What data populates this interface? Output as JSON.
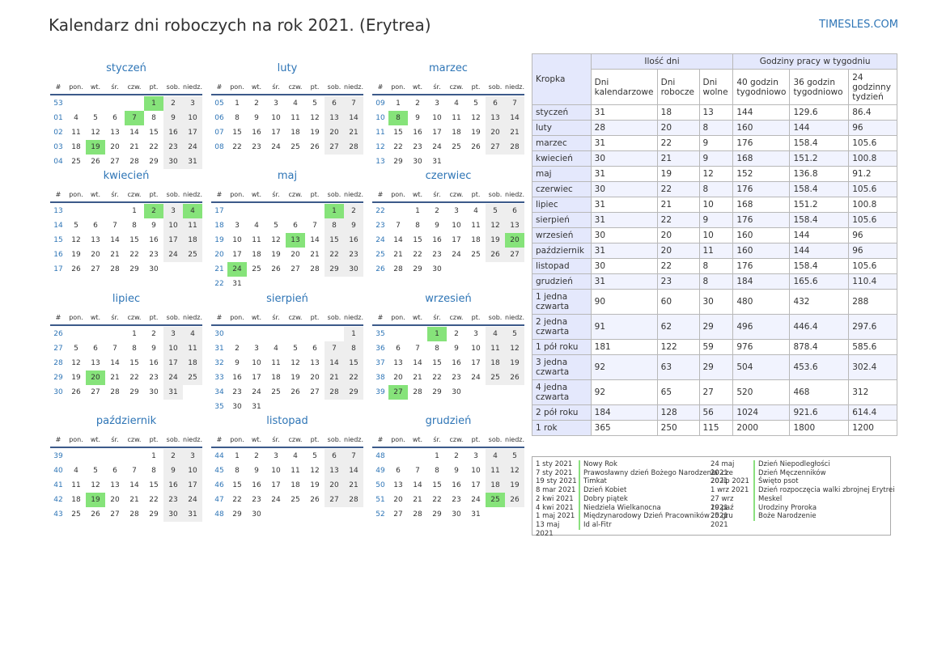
{
  "header": {
    "title": "Kalendarz dni roboczych na rok 2021. (Erytrea)",
    "site": "TIMESLES.COM"
  },
  "calendar": {
    "weekdays": [
      "#",
      "pon.",
      "wt.",
      "śr.",
      "czw.",
      "pt.",
      "sob.",
      "niedz."
    ],
    "months": [
      {
        "name": "styczeń",
        "holidays": [
          1,
          7,
          19
        ],
        "weeks": [
          [
            "53",
            null,
            null,
            null,
            null,
            1,
            2,
            3
          ],
          [
            "01",
            4,
            5,
            6,
            7,
            8,
            9,
            10
          ],
          [
            "02",
            11,
            12,
            13,
            14,
            15,
            16,
            17
          ],
          [
            "03",
            18,
            19,
            20,
            21,
            22,
            23,
            24
          ],
          [
            "04",
            25,
            26,
            27,
            28,
            29,
            30,
            31
          ]
        ]
      },
      {
        "name": "luty",
        "holidays": [],
        "weeks": [
          [
            "05",
            1,
            2,
            3,
            4,
            5,
            6,
            7
          ],
          [
            "06",
            8,
            9,
            10,
            11,
            12,
            13,
            14
          ],
          [
            "07",
            15,
            16,
            17,
            18,
            19,
            20,
            21
          ],
          [
            "08",
            22,
            23,
            24,
            25,
            26,
            27,
            28
          ]
        ]
      },
      {
        "name": "marzec",
        "holidays": [
          8
        ],
        "weeks": [
          [
            "09",
            1,
            2,
            3,
            4,
            5,
            6,
            7
          ],
          [
            "10",
            8,
            9,
            10,
            11,
            12,
            13,
            14
          ],
          [
            "11",
            15,
            16,
            17,
            18,
            19,
            20,
            21
          ],
          [
            "12",
            22,
            23,
            24,
            25,
            26,
            27,
            28
          ],
          [
            "13",
            29,
            30,
            31,
            null,
            null,
            null,
            null
          ]
        ]
      },
      {
        "name": "kwiecień",
        "holidays": [
          2,
          4
        ],
        "weeks": [
          [
            "13",
            null,
            null,
            null,
            1,
            2,
            3,
            4
          ],
          [
            "14",
            5,
            6,
            7,
            8,
            9,
            10,
            11
          ],
          [
            "15",
            12,
            13,
            14,
            15,
            16,
            17,
            18
          ],
          [
            "16",
            19,
            20,
            21,
            22,
            23,
            24,
            25
          ],
          [
            "17",
            26,
            27,
            28,
            29,
            30,
            null,
            null
          ]
        ]
      },
      {
        "name": "maj",
        "holidays": [
          1,
          13,
          24
        ],
        "weeks": [
          [
            "17",
            null,
            null,
            null,
            null,
            null,
            1,
            2
          ],
          [
            "18",
            3,
            4,
            5,
            6,
            7,
            8,
            9
          ],
          [
            "19",
            10,
            11,
            12,
            13,
            14,
            15,
            16
          ],
          [
            "20",
            17,
            18,
            19,
            20,
            21,
            22,
            23
          ],
          [
            "21",
            24,
            25,
            26,
            27,
            28,
            29,
            30
          ],
          [
            "22",
            31,
            null,
            null,
            null,
            null,
            null,
            null
          ]
        ]
      },
      {
        "name": "czerwiec",
        "holidays": [
          20
        ],
        "weeks": [
          [
            "22",
            null,
            1,
            2,
            3,
            4,
            5,
            6
          ],
          [
            "23",
            7,
            8,
            9,
            10,
            11,
            12,
            13
          ],
          [
            "24",
            14,
            15,
            16,
            17,
            18,
            19,
            20
          ],
          [
            "25",
            21,
            22,
            23,
            24,
            25,
            26,
            27
          ],
          [
            "26",
            28,
            29,
            30,
            null,
            null,
            null,
            null
          ]
        ]
      },
      {
        "name": "lipiec",
        "holidays": [
          20
        ],
        "weeks": [
          [
            "26",
            null,
            null,
            null,
            1,
            2,
            3,
            4
          ],
          [
            "27",
            5,
            6,
            7,
            8,
            9,
            10,
            11
          ],
          [
            "28",
            12,
            13,
            14,
            15,
            16,
            17,
            18
          ],
          [
            "29",
            19,
            20,
            21,
            22,
            23,
            24,
            25
          ],
          [
            "30",
            26,
            27,
            28,
            29,
            30,
            31,
            null
          ]
        ]
      },
      {
        "name": "sierpień",
        "holidays": [],
        "weeks": [
          [
            "30",
            null,
            null,
            null,
            null,
            null,
            null,
            1
          ],
          [
            "31",
            2,
            3,
            4,
            5,
            6,
            7,
            8
          ],
          [
            "32",
            9,
            10,
            11,
            12,
            13,
            14,
            15
          ],
          [
            "33",
            16,
            17,
            18,
            19,
            20,
            21,
            22
          ],
          [
            "34",
            23,
            24,
            25,
            26,
            27,
            28,
            29
          ],
          [
            "35",
            30,
            31,
            null,
            null,
            null,
            null,
            null
          ]
        ]
      },
      {
        "name": "wrzesień",
        "holidays": [
          1,
          27
        ],
        "weeks": [
          [
            "35",
            null,
            null,
            1,
            2,
            3,
            4,
            5
          ],
          [
            "36",
            6,
            7,
            8,
            9,
            10,
            11,
            12
          ],
          [
            "37",
            13,
            14,
            15,
            16,
            17,
            18,
            19
          ],
          [
            "38",
            20,
            21,
            22,
            23,
            24,
            25,
            26
          ],
          [
            "39",
            27,
            28,
            29,
            30,
            null,
            null,
            null
          ]
        ]
      },
      {
        "name": "październik",
        "holidays": [
          19
        ],
        "weeks": [
          [
            "39",
            null,
            null,
            null,
            null,
            1,
            2,
            3
          ],
          [
            "40",
            4,
            5,
            6,
            7,
            8,
            9,
            10
          ],
          [
            "41",
            11,
            12,
            13,
            14,
            15,
            16,
            17
          ],
          [
            "42",
            18,
            19,
            20,
            21,
            22,
            23,
            24
          ],
          [
            "43",
            25,
            26,
            27,
            28,
            29,
            30,
            31
          ]
        ]
      },
      {
        "name": "listopad",
        "holidays": [],
        "weeks": [
          [
            "44",
            1,
            2,
            3,
            4,
            5,
            6,
            7
          ],
          [
            "45",
            8,
            9,
            10,
            11,
            12,
            13,
            14
          ],
          [
            "46",
            15,
            16,
            17,
            18,
            19,
            20,
            21
          ],
          [
            "47",
            22,
            23,
            24,
            25,
            26,
            27,
            28
          ],
          [
            "48",
            29,
            30,
            null,
            null,
            null,
            null,
            null
          ]
        ]
      },
      {
        "name": "grudzień",
        "holidays": [
          25
        ],
        "weeks": [
          [
            "48",
            null,
            null,
            1,
            2,
            3,
            4,
            5
          ],
          [
            "49",
            6,
            7,
            8,
            9,
            10,
            11,
            12
          ],
          [
            "50",
            13,
            14,
            15,
            16,
            17,
            18,
            19
          ],
          [
            "51",
            20,
            21,
            22,
            23,
            24,
            25,
            26
          ],
          [
            "52",
            27,
            28,
            29,
            30,
            31,
            null,
            null
          ]
        ]
      }
    ]
  },
  "table": {
    "header": [
      "Kropka",
      "Ilość dni",
      "Godziny pracy w tygodniu"
    ],
    "subheader": [
      "Dni kalendarzowe",
      "Dni robocze",
      "Dni wolne",
      "40 godzin tygodniowo",
      "36 godzin tygodniowo",
      "24 godzinny tydzień"
    ],
    "rows": [
      [
        "styczeń",
        31,
        18,
        13,
        144,
        129.6,
        86.4
      ],
      [
        "luty",
        28,
        20,
        8,
        160,
        144,
        96
      ],
      [
        "marzec",
        31,
        22,
        9,
        176,
        158.4,
        105.6
      ],
      [
        "kwiecień",
        30,
        21,
        9,
        168,
        151.2,
        100.8
      ],
      [
        "maj",
        31,
        19,
        12,
        152,
        136.8,
        91.2
      ],
      [
        "czerwiec",
        30,
        22,
        8,
        176,
        158.4,
        105.6
      ],
      [
        "lipiec",
        31,
        21,
        10,
        168,
        151.2,
        100.8
      ],
      [
        "sierpień",
        31,
        22,
        9,
        176,
        158.4,
        105.6
      ],
      [
        "wrzesień",
        30,
        20,
        10,
        160,
        144,
        96
      ],
      [
        "październik",
        31,
        20,
        11,
        160,
        144,
        96
      ],
      [
        "listopad",
        30,
        22,
        8,
        176,
        158.4,
        105.6
      ],
      [
        "grudzień",
        31,
        23,
        8,
        184,
        165.6,
        110.4
      ],
      [
        "1 jedna czwarta",
        90,
        60,
        30,
        480,
        432,
        288
      ],
      [
        "2 jedna czwarta",
        91,
        62,
        29,
        496,
        446.4,
        297.6
      ],
      [
        "1 pół roku",
        181,
        122,
        59,
        976,
        878.4,
        585.6
      ],
      [
        "3 jedna czwarta",
        92,
        63,
        29,
        504,
        453.6,
        302.4
      ],
      [
        "4 jedna czwarta",
        92,
        65,
        27,
        520,
        468,
        312
      ],
      [
        "2 pół roku",
        184,
        128,
        56,
        1024,
        921.6,
        614.4
      ],
      [
        "1 rok",
        365,
        250,
        115,
        2000,
        1800,
        1200
      ]
    ]
  },
  "holidays": {
    "left": [
      [
        "1 sty 2021",
        "Nowy Rok"
      ],
      [
        "7 sty 2021",
        "Prawosławny dzień Bożego Narodzenia"
      ],
      [
        "19 sty 2021",
        "Timkat"
      ],
      [
        "8 mar 2021",
        "Dzień Kobiet"
      ],
      [
        "2 kwi 2021",
        "Dobry piątek"
      ],
      [
        "4 kwi 2021",
        "Niedziela Wielkanocna"
      ],
      [
        "1 maj 2021",
        "Międzynarodowy Dzień Pracowników"
      ],
      [
        "13 maj 2021",
        "Id al-Fitr"
      ]
    ],
    "right": [
      [
        "24 maj 2021",
        "Dzień Niepodległości"
      ],
      [
        "20 cze 2021",
        "Dzień Męczenników"
      ],
      [
        "20 lip 2021",
        "Święto psot"
      ],
      [
        "1 wrz 2021",
        "Dzień rozpoczęcia walki zbrojnej Erytrei"
      ],
      [
        "27 wrz 2021",
        "Meskel"
      ],
      [
        "19 paź 2021",
        "Urodziny Proroka"
      ],
      [
        "25 gru 2021",
        "Boże Narodzenie"
      ]
    ]
  }
}
